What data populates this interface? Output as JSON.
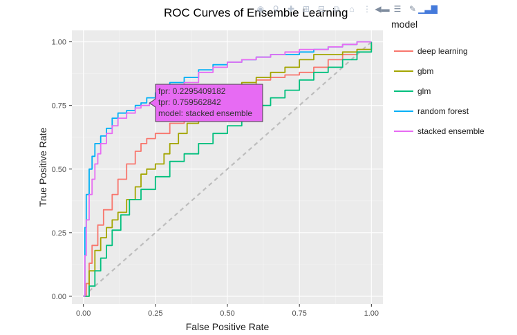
{
  "chart_data": {
    "type": "line",
    "title": "ROC Curves of Ensemble Learning",
    "xlabel": "False Positive Rate",
    "ylabel": "True Positive Rate",
    "xlim": [
      -0.04,
      1.04
    ],
    "ylim": [
      -0.03,
      1.045
    ],
    "x_ticks": [
      0,
      0.25,
      0.5,
      0.75,
      1
    ],
    "x_tick_labels": [
      "0.00",
      "0.25",
      "0.50",
      "0.75",
      "1.00"
    ],
    "y_ticks": [
      0,
      0.25,
      0.5,
      0.75,
      1
    ],
    "y_tick_labels": [
      "0.00",
      "0.25",
      "0.50",
      "0.75",
      "1.00"
    ],
    "legend_title": "model",
    "legend_position": "right",
    "series": [
      {
        "name": "deep learning",
        "color": "#F8766D",
        "x": [
          0,
          0.01,
          0.02,
          0.03,
          0.05,
          0.07,
          0.1,
          0.12,
          0.15,
          0.18,
          0.2,
          0.22,
          0.25,
          0.3,
          0.35,
          0.4,
          0.45,
          0.5,
          0.55,
          0.6,
          0.65,
          0.7,
          0.75,
          0.8,
          0.85,
          0.9,
          0.95,
          1
        ],
        "y": [
          0,
          0.05,
          0.13,
          0.2,
          0.28,
          0.34,
          0.4,
          0.46,
          0.52,
          0.57,
          0.6,
          0.62,
          0.64,
          0.68,
          0.7,
          0.74,
          0.77,
          0.8,
          0.83,
          0.85,
          0.86,
          0.87,
          0.88,
          0.9,
          0.93,
          0.95,
          0.97,
          1
        ]
      },
      {
        "name": "gbm",
        "color": "#A3A500",
        "x": [
          0,
          0.02,
          0.04,
          0.06,
          0.08,
          0.1,
          0.12,
          0.15,
          0.18,
          0.2,
          0.22,
          0.25,
          0.28,
          0.3,
          0.33,
          0.36,
          0.4,
          0.45,
          0.5,
          0.55,
          0.6,
          0.65,
          0.7,
          0.75,
          0.8,
          0.85,
          0.9,
          0.95,
          1
        ],
        "y": [
          0,
          0.1,
          0.18,
          0.23,
          0.27,
          0.3,
          0.33,
          0.38,
          0.43,
          0.48,
          0.5,
          0.52,
          0.56,
          0.6,
          0.64,
          0.68,
          0.72,
          0.76,
          0.8,
          0.84,
          0.86,
          0.88,
          0.9,
          0.93,
          0.95,
          0.95,
          0.96,
          0.97,
          0.99
        ]
      },
      {
        "name": "glm",
        "color": "#00BF7D",
        "x": [
          0,
          0.02,
          0.04,
          0.06,
          0.08,
          0.1,
          0.13,
          0.16,
          0.2,
          0.25,
          0.3,
          0.35,
          0.4,
          0.45,
          0.5,
          0.55,
          0.6,
          0.65,
          0.7,
          0.75,
          0.8,
          0.85,
          0.9,
          0.95,
          1
        ],
        "y": [
          0,
          0.04,
          0.1,
          0.15,
          0.2,
          0.26,
          0.32,
          0.38,
          0.42,
          0.47,
          0.53,
          0.56,
          0.6,
          0.64,
          0.67,
          0.7,
          0.75,
          0.78,
          0.81,
          0.85,
          0.88,
          0.9,
          0.93,
          0.96,
          1
        ]
      },
      {
        "name": "random forest",
        "color": "#00B0F6",
        "x": [
          0,
          0.005,
          0.01,
          0.02,
          0.03,
          0.04,
          0.06,
          0.08,
          0.1,
          0.12,
          0.15,
          0.18,
          0.2,
          0.22,
          0.25,
          0.28,
          0.3,
          0.35,
          0.4,
          0.45,
          0.5,
          0.55,
          0.6,
          0.65,
          0.7,
          0.75,
          0.8,
          0.85,
          0.9,
          0.95,
          1
        ],
        "y": [
          0,
          0.27,
          0.4,
          0.5,
          0.55,
          0.6,
          0.63,
          0.66,
          0.7,
          0.72,
          0.73,
          0.75,
          0.76,
          0.78,
          0.8,
          0.82,
          0.84,
          0.86,
          0.89,
          0.91,
          0.92,
          0.93,
          0.94,
          0.95,
          0.95,
          0.96,
          0.97,
          0.98,
          0.99,
          1,
          1
        ]
      },
      {
        "name": "stacked ensemble",
        "color": "#E76BF3",
        "x": [
          0,
          0.005,
          0.01,
          0.02,
          0.03,
          0.04,
          0.05,
          0.06,
          0.08,
          0.1,
          0.12,
          0.15,
          0.18,
          0.2,
          0.2295409182,
          0.25,
          0.28,
          0.3,
          0.35,
          0.4,
          0.45,
          0.5,
          0.55,
          0.6,
          0.65,
          0.7,
          0.75,
          0.8,
          0.85,
          0.9,
          0.95,
          1
        ],
        "y": [
          0,
          0.16,
          0.3,
          0.4,
          0.46,
          0.52,
          0.56,
          0.6,
          0.64,
          0.67,
          0.7,
          0.72,
          0.74,
          0.75,
          0.759562842,
          0.78,
          0.8,
          0.82,
          0.84,
          0.88,
          0.9,
          0.92,
          0.93,
          0.94,
          0.95,
          0.96,
          0.97,
          0.97,
          0.98,
          0.99,
          1,
          1
        ]
      }
    ],
    "reference_line": {
      "name": "diagonal",
      "color": "#BDBDBD",
      "x": [
        0,
        1
      ],
      "y": [
        0,
        1
      ]
    }
  },
  "hover": {
    "fpr_label": "fpr: 0.2295409182",
    "tpr_label": "tpr: 0.759562842",
    "model_label": "model: stacked ensemble",
    "fpr": 0.2295409182,
    "tpr": 0.759562842,
    "color": "#E76BF3"
  },
  "modebar": {
    "icons": [
      "camera-icon",
      "zoom-icon",
      "pan-icon",
      "zoom-in-icon",
      "zoom-out-icon",
      "autoscale-icon",
      "home-icon",
      "spike-lines-icon",
      "hover-closest-icon",
      "hover-compare-icon",
      "edit-icon",
      "plotly-logo-icon"
    ]
  }
}
